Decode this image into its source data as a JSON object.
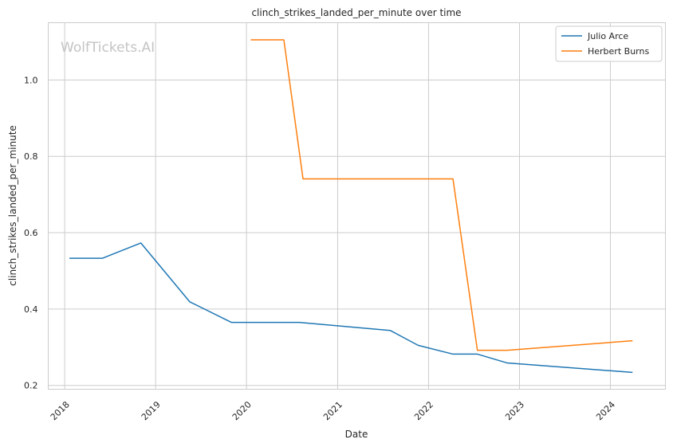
{
  "watermark": "WolfTickets.AI",
  "chart_data": {
    "type": "line",
    "title": "clinch_strikes_landed_per_minute over time",
    "xlabel": "Date",
    "ylabel": "clinch_strikes_landed_per_minute",
    "x_type": "date",
    "xlim": [
      "2017-10-27",
      "2024-08-09"
    ],
    "ylim": [
      0.19,
      1.15
    ],
    "x_ticks": [
      "2018",
      "2019",
      "2020",
      "2021",
      "2022",
      "2023",
      "2024"
    ],
    "y_ticks": [
      "0.2",
      "0.4",
      "0.6",
      "0.8",
      "1.0"
    ],
    "grid": true,
    "legend_position": "top-right",
    "series": [
      {
        "name": "Julio Arce",
        "color": "#1f77b4",
        "points": [
          [
            "2018-01-20",
            0.533
          ],
          [
            "2018-06-01",
            0.533
          ],
          [
            "2018-11-03",
            0.573
          ],
          [
            "2019-05-18",
            0.419
          ],
          [
            "2019-11-02",
            0.365
          ],
          [
            "2020-08-01",
            0.365
          ],
          [
            "2021-07-31",
            0.344
          ],
          [
            "2021-11-20",
            0.305
          ],
          [
            "2022-04-09",
            0.282
          ],
          [
            "2022-07-16",
            0.282
          ],
          [
            "2022-11-12",
            0.259
          ],
          [
            "2024-03-30",
            0.234
          ]
        ]
      },
      {
        "name": "Herbert Burns",
        "color": "#ff7f0e",
        "points": [
          [
            "2020-01-18",
            1.105
          ],
          [
            "2020-05-30",
            1.105
          ],
          [
            "2020-08-15",
            0.741
          ],
          [
            "2022-04-09",
            0.741
          ],
          [
            "2022-07-16",
            0.292
          ],
          [
            "2022-11-12",
            0.292
          ],
          [
            "2024-03-30",
            0.317
          ]
        ]
      }
    ]
  }
}
